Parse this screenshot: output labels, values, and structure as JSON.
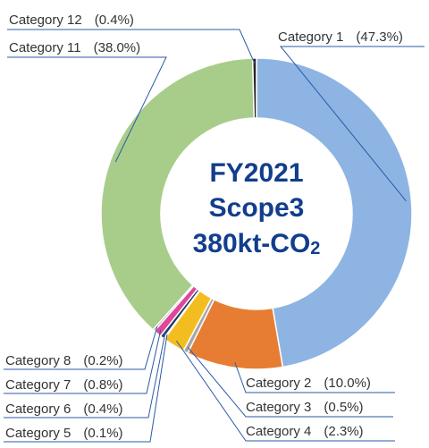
{
  "chart_data": {
    "type": "pie",
    "donut": true,
    "center_text": {
      "line1": "FY2021",
      "line2": "Scope3",
      "line3_main": "380kt-CO",
      "line3_sub": "2"
    },
    "slices": [
      {
        "label": "Category 1",
        "pct_label": "(47.3%)",
        "value": 47.3,
        "color": "#8db4e2"
      },
      {
        "label": "Category 2",
        "pct_label": "(10.0%)",
        "value": 10.0,
        "color": "#e77d33"
      },
      {
        "label": "Category 3",
        "pct_label": "(0.5%)",
        "value": 0.5,
        "color": "#a6a6a6"
      },
      {
        "label": "Category 4",
        "pct_label": "(2.3%)",
        "value": 2.3,
        "color": "#f4bd1f"
      },
      {
        "label": "Category 5",
        "pct_label": "(0.1%)",
        "value": 0.1,
        "color": "#2e5c9e"
      },
      {
        "label": "Category 6",
        "pct_label": "(0.4%)",
        "value": 0.4,
        "color": "#1f3864"
      },
      {
        "label": "Category 7",
        "pct_label": "(0.8%)",
        "value": 0.8,
        "color": "#e0479a"
      },
      {
        "label": "Category 8",
        "pct_label": "(0.2%)",
        "value": 0.2,
        "color": "#7f7f7f"
      },
      {
        "label": "Category 11",
        "pct_label": "(38.0%)",
        "value": 38.0,
        "color": "#a8cd8a"
      },
      {
        "label": "Category 12",
        "pct_label": "(0.4%)",
        "value": 0.4,
        "color": "#262626"
      }
    ]
  }
}
